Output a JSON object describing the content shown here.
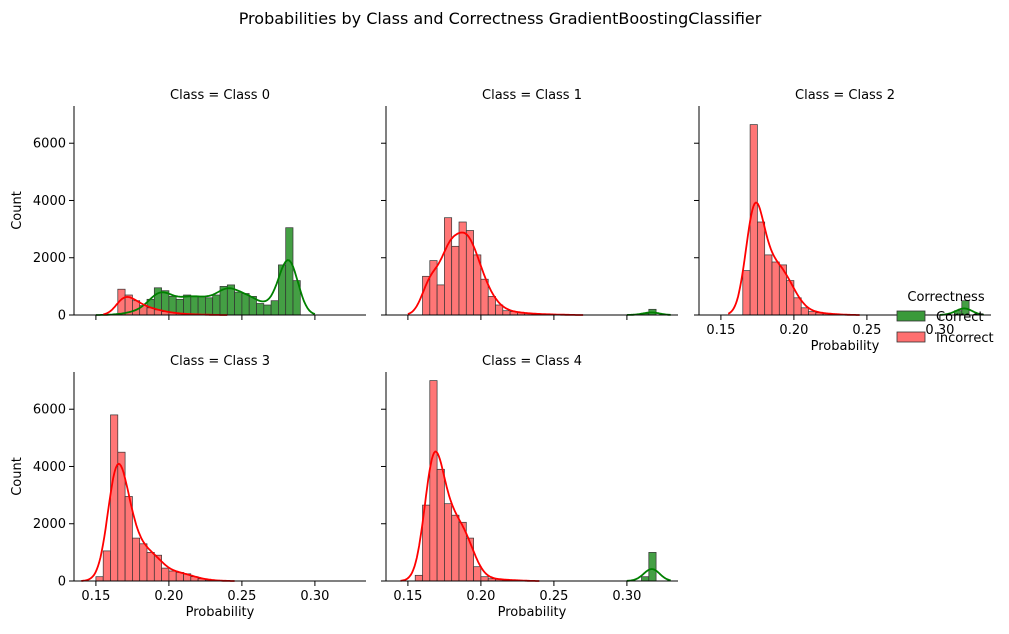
{
  "chart_data": {
    "type": "histogram-facet",
    "title": "Probabilities by Class and Correctness GradientBoostingClassifier",
    "xlabel": "Probability",
    "ylabel": "Count",
    "xlim": [
      0.135,
      0.335
    ],
    "ylim": [
      0,
      7300
    ],
    "yticks": [
      0,
      2000,
      4000,
      6000
    ],
    "xticks": [
      0.15,
      0.2,
      0.25,
      0.3
    ],
    "xtick_labels": [
      "0.15",
      "0.20",
      "0.25",
      "0.30"
    ],
    "grid": false,
    "legend": {
      "title": "Correctness",
      "placement": "right",
      "entries": [
        {
          "label": "Correct",
          "color": "#3a9a3a"
        },
        {
          "label": "Incorrect",
          "color": "#ff6f6f"
        }
      ]
    },
    "colors": {
      "Correct": "#008000",
      "Incorrect": "#ff0000"
    },
    "panels": [
      {
        "title": "Class = Class 0",
        "series": [
          {
            "name": "Correct",
            "x0": 0.16,
            "binwidth": 0.005,
            "values": [
              20,
              40,
              80,
              150,
              250,
              550,
              950,
              850,
              650,
              550,
              700,
              650,
              650,
              600,
              700,
              1000,
              1050,
              800,
              750,
              650,
              400,
              350,
              500,
              1750,
              3050,
              1200
            ]
          },
          {
            "name": "Incorrect",
            "x0": 0.165,
            "binwidth": 0.005,
            "values": [
              900,
              700,
              500,
              330,
              250,
              180,
              120,
              80,
              50,
              30,
              20,
              15,
              10
            ]
          }
        ]
      },
      {
        "title": "Class = Class 1",
        "series": [
          {
            "name": "Correct",
            "x0": 0.31,
            "binwidth": 0.005,
            "values": [
              50,
              200
            ]
          },
          {
            "name": "Incorrect",
            "x0": 0.16,
            "binwidth": 0.005,
            "values": [
              1350,
              1900,
              1050,
              3400,
              2400,
              3250,
              2950,
              2100,
              1250,
              650,
              350,
              150,
              120,
              80,
              60,
              40,
              30,
              20,
              15,
              10
            ]
          }
        ]
      },
      {
        "title": "Class = Class 2",
        "series": [
          {
            "name": "Correct",
            "x0": 0.31,
            "binwidth": 0.005,
            "values": [
              150,
              500
            ]
          },
          {
            "name": "Incorrect",
            "x0": 0.165,
            "binwidth": 0.005,
            "values": [
              1550,
              6650,
              3250,
              2100,
              1850,
              1750,
              1200,
              600,
              250,
              120,
              80,
              50,
              30,
              20
            ]
          }
        ]
      },
      {
        "title": "Class = Class 3",
        "series": [
          {
            "name": "Incorrect",
            "x0": 0.15,
            "binwidth": 0.005,
            "values": [
              150,
              1050,
              5800,
              4500,
              2950,
              1500,
              1300,
              1000,
              900,
              450,
              350,
              300,
              250,
              150,
              80,
              40,
              20
            ]
          }
        ]
      },
      {
        "title": "Class = Class 4",
        "series": [
          {
            "name": "Correct",
            "x0": 0.31,
            "binwidth": 0.005,
            "values": [
              150,
              1000
            ]
          },
          {
            "name": "Incorrect",
            "x0": 0.155,
            "binwidth": 0.005,
            "values": [
              200,
              2650,
              7000,
              3900,
              2700,
              2300,
              2050,
              1500,
              500,
              150,
              80,
              60,
              40,
              30,
              20
            ]
          }
        ]
      }
    ]
  }
}
